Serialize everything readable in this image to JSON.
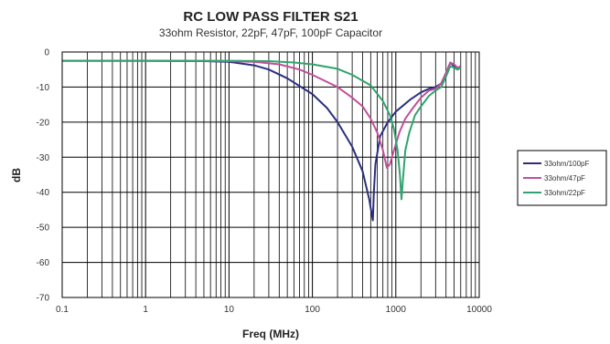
{
  "chart_data": {
    "type": "line",
    "title": "RC LOW PASS FILTER S21",
    "subtitle": "33ohm Resistor, 22pF, 47pF, 100pF Capacitor",
    "xlabel": "Freq (MHz)",
    "ylabel": "dB",
    "x_scale": "log",
    "xlim": [
      0.1,
      10000
    ],
    "ylim": [
      -70,
      0
    ],
    "x_ticks": [
      "0.1",
      "1",
      "10",
      "100",
      "1000",
      "10000"
    ],
    "y_ticks": [
      "0",
      "-10",
      "-20",
      "-30",
      "-40",
      "-50",
      "-60",
      "-70"
    ],
    "grid": true,
    "legend_position": "right",
    "series": [
      {
        "name": "33ohm/100pF",
        "color": "#2b2f7f",
        "points": [
          [
            0.1,
            -2.5
          ],
          [
            1,
            -2.5
          ],
          [
            5,
            -2.6
          ],
          [
            10,
            -2.8
          ],
          [
            20,
            -3.8
          ],
          [
            30,
            -5
          ],
          [
            50,
            -7.5
          ],
          [
            100,
            -12
          ],
          [
            150,
            -16
          ],
          [
            200,
            -20
          ],
          [
            300,
            -27
          ],
          [
            400,
            -34
          ],
          [
            480,
            -42
          ],
          [
            530,
            -48
          ],
          [
            545,
            -40
          ],
          [
            570,
            -32
          ],
          [
            650,
            -24
          ],
          [
            800,
            -20
          ],
          [
            1000,
            -17
          ],
          [
            1500,
            -13.5
          ],
          [
            2000,
            -11.5
          ],
          [
            2500,
            -10.5
          ],
          [
            3000,
            -10
          ],
          [
            3500,
            -9
          ],
          [
            4000,
            -6
          ],
          [
            4500,
            -3
          ],
          [
            5000,
            -4
          ],
          [
            5500,
            -5
          ],
          [
            6000,
            -4
          ]
        ]
      },
      {
        "name": "33ohm/47pF",
        "color": "#c0509a",
        "points": [
          [
            0.1,
            -2.5
          ],
          [
            1,
            -2.5
          ],
          [
            10,
            -2.6
          ],
          [
            20,
            -2.8
          ],
          [
            40,
            -3.5
          ],
          [
            70,
            -5
          ],
          [
            100,
            -6.5
          ],
          [
            200,
            -10
          ],
          [
            300,
            -13
          ],
          [
            400,
            -15.5
          ],
          [
            500,
            -19
          ],
          [
            600,
            -23
          ],
          [
            700,
            -28
          ],
          [
            780,
            -33
          ],
          [
            850,
            -32
          ],
          [
            950,
            -28
          ],
          [
            1100,
            -23
          ],
          [
            1300,
            -19
          ],
          [
            1600,
            -16
          ],
          [
            2000,
            -13
          ],
          [
            2500,
            -11
          ],
          [
            3000,
            -10.5
          ],
          [
            3500,
            -9
          ],
          [
            4000,
            -6
          ],
          [
            4500,
            -3
          ],
          [
            5000,
            -3.5
          ],
          [
            5500,
            -4.5
          ],
          [
            6000,
            -4
          ]
        ]
      },
      {
        "name": "33ohm/22pF",
        "color": "#2fa46e",
        "points": [
          [
            0.1,
            -2.5
          ],
          [
            1,
            -2.5
          ],
          [
            10,
            -2.5
          ],
          [
            30,
            -2.6
          ],
          [
            60,
            -3
          ],
          [
            100,
            -3.5
          ],
          [
            200,
            -4.8
          ],
          [
            300,
            -6.5
          ],
          [
            500,
            -9.5
          ],
          [
            700,
            -14
          ],
          [
            850,
            -18
          ],
          [
            950,
            -22
          ],
          [
            1050,
            -28
          ],
          [
            1120,
            -35
          ],
          [
            1170,
            -42
          ],
          [
            1220,
            -36
          ],
          [
            1300,
            -28
          ],
          [
            1450,
            -23
          ],
          [
            1700,
            -18
          ],
          [
            2000,
            -15.5
          ],
          [
            2500,
            -12.5
          ],
          [
            3000,
            -11
          ],
          [
            3500,
            -10
          ],
          [
            4000,
            -7
          ],
          [
            4500,
            -4
          ],
          [
            5000,
            -4.5
          ],
          [
            5500,
            -5
          ],
          [
            6000,
            -4.5
          ]
        ]
      }
    ]
  }
}
